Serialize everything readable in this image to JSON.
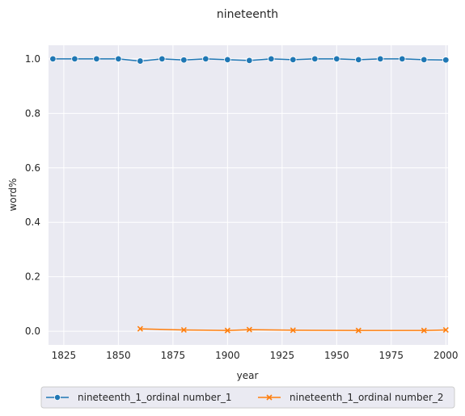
{
  "chart_data": {
    "type": "line",
    "title": "nineteenth",
    "xlabel": "year",
    "ylabel": "word%",
    "xlim": [
      1818,
      2001
    ],
    "ylim": [
      -0.05,
      1.05
    ],
    "x_ticks": [
      1825,
      1850,
      1875,
      1900,
      1925,
      1950,
      1975,
      2000
    ],
    "y_ticks": [
      0.0,
      0.2,
      0.4,
      0.6,
      0.8,
      1.0
    ],
    "grid": true,
    "legend_position": "bottom-center",
    "series": [
      {
        "name": "nineteenth_1_ordinal number_1",
        "color": "#1f77b4",
        "marker": "circle",
        "x": [
          1820,
          1830,
          1840,
          1850,
          1860,
          1870,
          1880,
          1890,
          1900,
          1910,
          1920,
          1930,
          1940,
          1950,
          1960,
          1970,
          1980,
          1990,
          2000
        ],
        "y": [
          1.0,
          1.0,
          1.0,
          1.0,
          0.992,
          1.0,
          0.996,
          1.0,
          0.997,
          0.994,
          1.0,
          0.997,
          1.0,
          1.0,
          0.997,
          1.0,
          1.0,
          0.997,
          0.996
        ]
      },
      {
        "name": "nineteenth_1_ordinal number_2",
        "color": "#ff7f0e",
        "marker": "x",
        "x": [
          1860,
          1880,
          1900,
          1910,
          1930,
          1960,
          1990,
          2000
        ],
        "y": [
          0.009,
          0.005,
          0.003,
          0.006,
          0.004,
          0.003,
          0.003,
          0.005
        ]
      }
    ]
  }
}
